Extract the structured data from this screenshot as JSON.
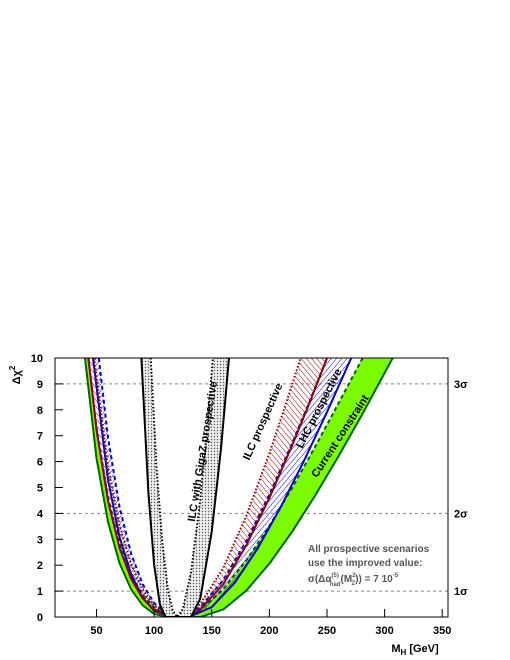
{
  "chart_data": {
    "type": "band",
    "x_label": [
      "M",
      "H",
      " [GeV]"
    ],
    "y_label": [
      "Δχ",
      "2"
    ],
    "xlim": [
      14,
      355
    ],
    "ylim": [
      0,
      10
    ],
    "xticks": [
      50,
      100,
      150,
      200,
      250,
      300,
      350
    ],
    "yticks": [
      0,
      1,
      2,
      3,
      4,
      5,
      6,
      7,
      8,
      9,
      10
    ],
    "sigma_lines": [
      {
        "value": 1,
        "label": "1σ"
      },
      {
        "value": 4,
        "label": "2σ"
      },
      {
        "value": 9,
        "label": "3σ"
      }
    ],
    "note": [
      "All prospective scenarios",
      "use the improved value:"
    ],
    "formula": [
      "σ(Δα",
      "(5)",
      "had",
      "(M",
      "2",
      "Z",
      ")) = 7 10",
      "-5"
    ],
    "series": [
      {
        "name": "Current constraint",
        "color": "#006400",
        "fill": "#7cfc00",
        "hatch": "solid",
        "inner_style": "dashed",
        "x": [
          40,
          50,
          60,
          70,
          80,
          90,
          100,
          112,
          140,
          160,
          180,
          200,
          220,
          240,
          260,
          280,
          307
        ],
        "values": [
          10,
          6.13,
          3.67,
          2.08,
          1.07,
          0.45,
          0.12,
          0,
          0,
          0.29,
          1.02,
          2.06,
          3.31,
          4.71,
          6.21,
          7.78,
          10
        ],
        "inner_x": [
          43,
          50,
          60,
          70,
          80,
          90,
          100,
          110,
          122,
          140,
          160,
          180,
          200,
          220,
          240,
          260,
          281
        ],
        "inner_values": [
          10,
          7.31,
          4.63,
          2.84,
          1.64,
          0.85,
          0.36,
          0.1,
          0,
          0.27,
          1.06,
          2.18,
          3.52,
          5.0,
          6.6,
          8.25,
          10
        ]
      },
      {
        "name": "LHC prospective",
        "color": "#0000cc",
        "fill": "#0000cc",
        "hatch": "lines",
        "inner_style": "dashed",
        "x": [
          47,
          60,
          70,
          80,
          90,
          100,
          115,
          130,
          150,
          170,
          190,
          210,
          230,
          250,
          271
        ],
        "values": [
          10,
          5.3,
          3.09,
          1.65,
          0.75,
          0.24,
          0,
          0,
          0.38,
          1.33,
          2.66,
          4.26,
          6.02,
          7.91,
          10
        ],
        "inner_x": [
          52,
          60,
          70,
          80,
          90,
          100,
          110,
          122,
          140,
          160,
          180,
          200,
          220,
          235,
          250
        ],
        "inner_values": [
          10,
          6.93,
          4.25,
          2.45,
          1.27,
          0.54,
          0.15,
          0,
          0.37,
          1.43,
          2.93,
          4.73,
          6.73,
          8.33,
          10
        ]
      },
      {
        "name": "ILC prospective",
        "color": "#8b0000",
        "fill": "#8b0000",
        "hatch": "lines",
        "inner_style": "dotted",
        "x": [
          43,
          50,
          60,
          70,
          80,
          90,
          100,
          118,
          125,
          140,
          160,
          180,
          200,
          220,
          235,
          250
        ],
        "values": [
          10,
          7.23,
          4.49,
          2.67,
          1.48,
          0.72,
          0.27,
          0,
          0,
          0.27,
          1.27,
          2.77,
          4.6,
          6.65,
          8.28,
          10
        ],
        "inner_x": [
          48,
          60,
          70,
          80,
          90,
          100,
          110,
          122,
          140,
          160,
          180,
          200,
          215,
          227
        ],
        "inner_values": [
          10,
          5.8,
          3.55,
          2.05,
          1.06,
          0.46,
          0.12,
          0,
          0.49,
          1.9,
          3.91,
          6.32,
          8.32,
          10
        ]
      },
      {
        "name": "ILC with GigaZ prospective",
        "color": "#000000",
        "fill": "#555555",
        "hatch": "dots",
        "inner_style": "dotted",
        "x": [
          89,
          95,
          100,
          105,
          110,
          132,
          140,
          150,
          158,
          165
        ],
        "values": [
          10,
          4.79,
          2.03,
          0.48,
          0,
          0,
          0.7,
          3.28,
          6.5,
          10
        ],
        "inner_x": [
          97,
          102,
          107,
          112,
          116,
          120,
          125,
          132,
          140,
          146,
          151
        ],
        "inner_values": [
          10,
          5.84,
          2.91,
          1.05,
          0.25,
          0,
          0.31,
          1.72,
          4.5,
          7.28,
          10
        ]
      }
    ]
  }
}
